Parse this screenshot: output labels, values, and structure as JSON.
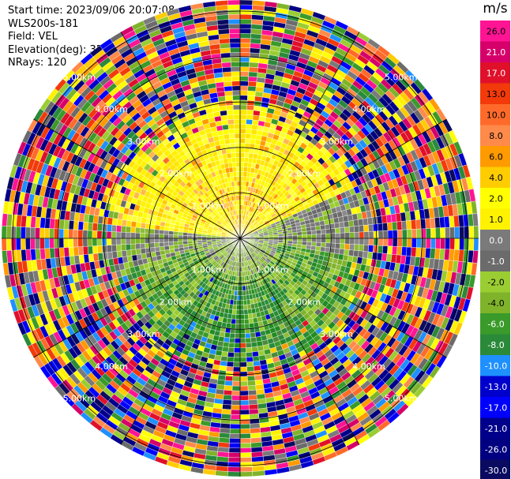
{
  "header": {
    "start_time": "Start time: 2023/09/06 20:07:08",
    "station": "WLS200s-181",
    "field": "Field: VEL",
    "elevation": "Elevation(deg): 35.30",
    "nrays": "NRays: 120"
  },
  "chart_data": {
    "type": "heatmap",
    "projection": "polar PPI",
    "title": "",
    "nrays": 120,
    "range_unit": "km",
    "range_rings_km": [
      1.0,
      2.0
    ],
    "range_ring_labels": [
      "1.00km",
      "2.00km"
    ],
    "outer_labels": [
      "3.00km",
      "4.00km",
      "5.00km"
    ],
    "spoke_angles_deg": [
      0,
      30,
      60,
      90,
      120,
      150,
      180,
      210,
      240,
      270,
      300,
      330
    ],
    "grid": true,
    "colorbar": {
      "unit": "m/s",
      "placement": "right",
      "ticks": [
        "26.0",
        "21.0",
        "17.0",
        "13.0",
        "10.0",
        "8.0",
        "6.0",
        "4.0",
        "2.0",
        "1.0",
        "0.0",
        "-1.0",
        "-2.0",
        "-4.0",
        "-6.0",
        "-8.0",
        "-10.0",
        "-13.0",
        "-17.0",
        "-21.0",
        "-26.0",
        "-30.0"
      ],
      "colors": [
        "#ff1493",
        "#d6006a",
        "#e0102a",
        "#f23a0a",
        "#ff6a2a",
        "#ff8a4a",
        "#ff9a00",
        "#ffcc00",
        "#ffff00",
        "#fff200",
        "#7a7a7a",
        "#6b6b6b",
        "#9acd32",
        "#7fb32a",
        "#3a9a2a",
        "#2a8a3a",
        "#1e90ff",
        "#0000cd",
        "#0000ff",
        "#00008b",
        "#000080",
        "#0a0a60"
      ]
    },
    "velocity_pattern": {
      "region_north_upper": "2.0 to 8.0",
      "region_east_band": "0.0",
      "region_south": "-2.0 to -8.0",
      "outer_noise": "mixed -30.0 to 26.0"
    }
  }
}
